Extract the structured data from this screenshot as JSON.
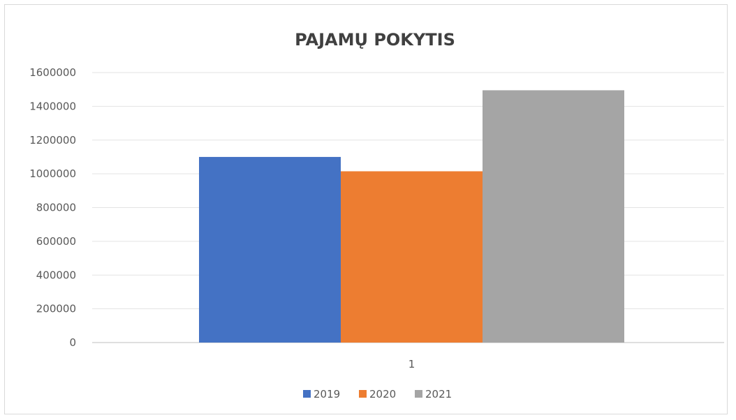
{
  "chart_data": {
    "type": "bar",
    "title": "PAJAMŲ POKYTIS",
    "categories": [
      "1"
    ],
    "series": [
      {
        "name": "2019",
        "values": [
          1100000
        ],
        "color": "#4472c4"
      },
      {
        "name": "2020",
        "values": [
          1015000
        ],
        "color": "#ed7d31"
      },
      {
        "name": "2021",
        "values": [
          1495000
        ],
        "color": "#a5a5a5"
      }
    ],
    "ylim": [
      0,
      1600000
    ],
    "yticks": [
      "0",
      "200000",
      "400000",
      "600000",
      "800000",
      "1000000",
      "1200000",
      "1400000",
      "1600000"
    ],
    "grid": true,
    "legend_position": "bottom",
    "xlabel": "",
    "ylabel": ""
  }
}
